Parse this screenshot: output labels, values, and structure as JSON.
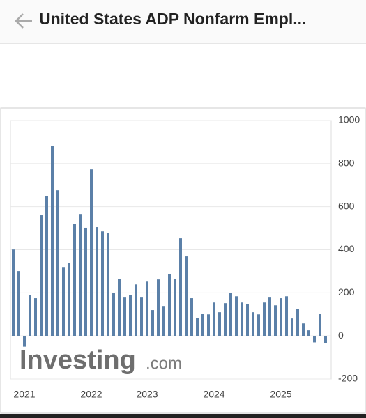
{
  "header": {
    "title": "United States ADP Nonfarm Empl..."
  },
  "chart_data": {
    "type": "bar",
    "watermark": {
      "brand": "Investing",
      "suffix": ".com"
    },
    "categories": [
      null,
      null,
      "2021",
      null,
      null,
      null,
      null,
      null,
      null,
      null,
      null,
      null,
      null,
      null,
      "2022",
      null,
      null,
      null,
      null,
      null,
      null,
      null,
      null,
      null,
      "2023",
      null,
      null,
      null,
      null,
      null,
      null,
      null,
      null,
      null,
      null,
      null,
      "2024",
      null,
      null,
      null,
      null,
      null,
      null,
      null,
      null,
      null,
      null,
      null,
      "2025",
      null,
      null,
      null,
      null,
      null,
      null,
      null,
      null
    ],
    "values": [
      401,
      301,
      -50,
      191,
      175,
      560,
      650,
      883,
      676,
      320,
      337,
      521,
      566,
      502,
      773,
      505,
      485,
      479,
      201,
      265,
      178,
      191,
      239,
      178,
      252,
      120,
      262,
      139,
      288,
      265,
      453,
      369,
      175,
      84,
      104,
      100,
      155,
      110,
      152,
      201,
      184,
      155,
      149,
      110,
      100,
      155,
      178,
      142,
      175,
      184,
      81,
      126,
      58,
      26,
      -30,
      104,
      -33
    ],
    "color": "#5b80a8",
    "ylim": [
      -200,
      1000
    ],
    "yticks": [
      -200,
      0,
      200,
      400,
      600,
      800,
      1000
    ],
    "grid": true,
    "y_axis_side": "right"
  }
}
